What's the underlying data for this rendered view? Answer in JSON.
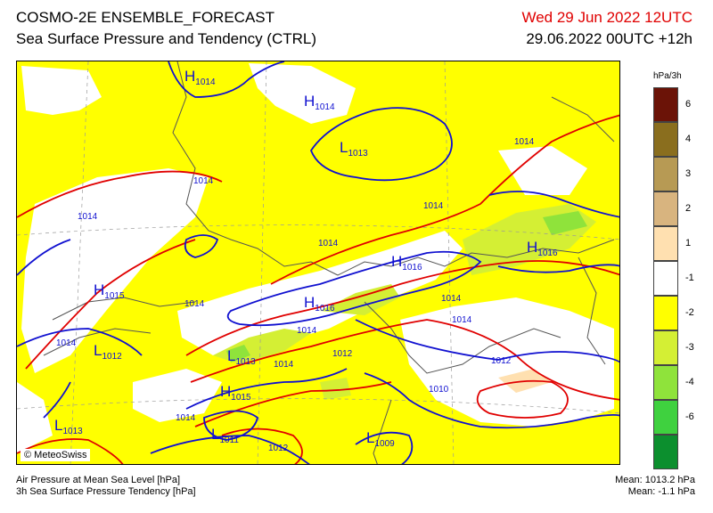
{
  "header": {
    "title": "COSMO-2E ENSEMBLE_FORECAST",
    "subtitle": "Sea Surface Pressure and Tendency (CTRL)",
    "valid_time": "Wed 29 Jun 2022 12UTC",
    "run_info": "29.06.2022 00UTC +12h"
  },
  "map": {
    "credit": "© MeteoSwiss",
    "pressure_centers": [
      {
        "type": "H",
        "value": "1014"
      },
      {
        "type": "H",
        "value": "1014"
      },
      {
        "type": "L",
        "value": "1013"
      },
      {
        "type": "H",
        "value": "1016"
      },
      {
        "type": "H",
        "value": "1016"
      },
      {
        "type": "H",
        "value": "1016"
      },
      {
        "type": "H",
        "value": "1015"
      },
      {
        "type": "L",
        "value": "1012"
      },
      {
        "type": "L",
        "value": "1013"
      },
      {
        "type": "H",
        "value": "1015"
      },
      {
        "type": "L",
        "value": "1011"
      },
      {
        "type": "L",
        "value": "1013"
      },
      {
        "type": "L",
        "value": "1009"
      }
    ],
    "isobar_labels": [
      "1014",
      "1014",
      "1014",
      "1014",
      "1014",
      "1014",
      "1014",
      "1014",
      "1014",
      "1014",
      "1014",
      "1014",
      "1012",
      "1012",
      "1012",
      "1010",
      "1014"
    ],
    "colors": {
      "map_bg": "#ffff00",
      "isobar_blue": "#1010d0",
      "isobar_red": "#e00000",
      "no_tendency": "#ffffff",
      "border": "#555555"
    }
  },
  "legend": {
    "unit": "hPa/3h",
    "bins": [
      {
        "label": "6",
        "color": "#6b1307"
      },
      {
        "label": "4",
        "color": "#8a6e1e"
      },
      {
        "label": "3",
        "color": "#b79a54"
      },
      {
        "label": "2",
        "color": "#d8b47f"
      },
      {
        "label": "1",
        "color": "#ffe0b0"
      },
      {
        "label": "-1",
        "color": "#ffffff"
      },
      {
        "label": "-2",
        "color": "#ffff00"
      },
      {
        "label": "-3",
        "color": "#d4ef34"
      },
      {
        "label": "-4",
        "color": "#8fe33b"
      },
      {
        "label": "-6",
        "color": "#3fd13f"
      },
      {
        "label": "",
        "color": "#0c8f2e"
      }
    ]
  },
  "footer": {
    "line1": "Air Pressure at Mean Sea Level [hPa]",
    "line2": "3h Sea Surface Pressure Tendency [hPa]",
    "mean_pressure": "Mean: 1013.2 hPa",
    "mean_tendency": "Mean:   -1.1 hPa"
  }
}
